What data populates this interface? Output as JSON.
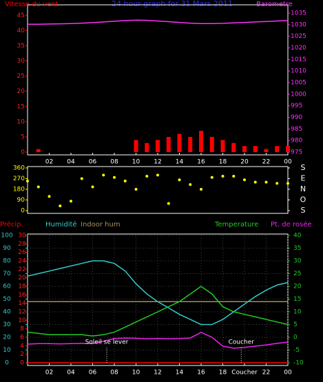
{
  "chart_data": [
    {
      "type": "combo",
      "title": "24 hour graph for 31 Mars 2011",
      "title_color": "#2a2aff",
      "x": [
        0,
        1,
        2,
        3,
        4,
        5,
        6,
        7,
        8,
        9,
        10,
        11,
        12,
        13,
        14,
        15,
        16,
        17,
        18,
        19,
        20,
        21,
        22,
        23,
        24
      ],
      "xlim": [
        0,
        24
      ],
      "xticks": [
        {
          "value": 2,
          "label": "02"
        },
        {
          "value": 4,
          "label": "04"
        },
        {
          "value": 6,
          "label": "06"
        },
        {
          "value": 8,
          "label": "08"
        },
        10,
        12,
        14,
        16,
        18,
        20,
        22,
        {
          "value": 24,
          "label": "00"
        }
      ],
      "axes": [
        {
          "side": "left",
          "color": "#ff2020",
          "lim": [
            0,
            48
          ],
          "ticks": [
            0,
            5,
            10,
            15,
            20,
            25,
            30,
            35,
            40,
            45
          ]
        },
        {
          "side": "right",
          "color": "#ff30ff",
          "lim": [
            975,
            1038
          ],
          "ticks": [
            975,
            980,
            985,
            990,
            995,
            1000,
            1005,
            1010,
            1015,
            1020,
            1025,
            1030,
            1035
          ]
        }
      ],
      "series": [
        {
          "name": "Vitesse du vent",
          "kind": "bar",
          "axis": 0,
          "color": "#ff0000",
          "values": [
            0,
            1,
            0,
            0,
            0,
            0,
            0,
            0,
            0,
            0,
            4,
            3,
            4,
            5,
            6,
            5,
            7,
            5,
            4,
            3,
            2,
            2,
            1,
            2,
            2
          ]
        },
        {
          "name": "Barometre",
          "kind": "line",
          "axis": 1,
          "color": "#ff30ff",
          "values": [
            1030.2,
            1030.2,
            1030.3,
            1030.4,
            1030.5,
            1030.7,
            1030.9,
            1031.2,
            1031.5,
            1031.8,
            1032,
            1031.9,
            1031.6,
            1031.3,
            1031,
            1030.7,
            1030.5,
            1030.5,
            1030.6,
            1030.8,
            1031,
            1031.2,
            1031.4,
            1031.6,
            1031.8
          ]
        }
      ],
      "grid": false
    },
    {
      "type": "scatter",
      "x": [
        0,
        1,
        2,
        3,
        4,
        5,
        6,
        7,
        8,
        9,
        10,
        11,
        12,
        13,
        14,
        15,
        16,
        17,
        18,
        19,
        20,
        21,
        22,
        23,
        24
      ],
      "xlim": [
        0,
        24
      ],
      "xticks": [],
      "axes": [
        {
          "side": "left",
          "color": "#ffff00",
          "lim": [
            0,
            360
          ],
          "ticks": [
            0,
            90,
            180,
            270,
            360
          ]
        },
        {
          "side": "right",
          "color": "#ffffff",
          "lim": [
            0,
            360
          ],
          "ticks": [
            {
              "value": 0,
              "label": "S"
            },
            {
              "value": 90,
              "label": "O"
            },
            {
              "value": 180,
              "label": "N"
            },
            {
              "value": 270,
              "label": "E"
            },
            {
              "value": 360,
              "label": "S"
            }
          ]
        }
      ],
      "series": [
        {
          "kind": "scatter",
          "axis": 0,
          "color": "#ffff00",
          "values": [
            250,
            200,
            120,
            40,
            80,
            270,
            200,
            300,
            280,
            250,
            180,
            290,
            300,
            60,
            260,
            220,
            180,
            280,
            290,
            290,
            260,
            240,
            240,
            230,
            230
          ]
        }
      ],
      "grid": false
    },
    {
      "type": "combo",
      "x": [
        0,
        1,
        2,
        3,
        4,
        5,
        6,
        7,
        8,
        9,
        10,
        11,
        12,
        13,
        14,
        15,
        16,
        17,
        18,
        19,
        20,
        21,
        22,
        23,
        24
      ],
      "xlim": [
        0,
        24
      ],
      "xticks": [
        {
          "value": 2,
          "label": "02"
        },
        {
          "value": 4,
          "label": "04"
        },
        {
          "value": 6,
          "label": "06"
        },
        {
          "value": 8,
          "label": "08"
        },
        10,
        12,
        14,
        16,
        18,
        {
          "value": 20,
          "label": "Coucher"
        },
        22,
        {
          "value": 24,
          "label": "00"
        }
      ],
      "axes": [
        {
          "side": "left",
          "color": "#33cccc",
          "lim": [
            0,
            100
          ],
          "ticks": [
            0,
            10,
            20,
            30,
            40,
            50,
            60,
            70,
            80,
            90,
            100
          ]
        },
        {
          "side": "left",
          "color": "#ff2020",
          "lim": [
            0,
            30
          ],
          "ticks": [
            0,
            2,
            4,
            6,
            8,
            10,
            12,
            14,
            16,
            18,
            20,
            22,
            24,
            26,
            28,
            30
          ]
        },
        {
          "side": "right",
          "color": "#22cc22",
          "lim": [
            -10,
            40
          ],
          "ticks": [
            -10,
            -5,
            0,
            5,
            10,
            15,
            20,
            25,
            30,
            35,
            40
          ]
        }
      ],
      "series": [
        {
          "name": "Précip.",
          "kind": "line",
          "axis": 1,
          "color": "#ff0000",
          "values": [
            0,
            0,
            0,
            0,
            0,
            0,
            0,
            0,
            0,
            0,
            0,
            0,
            0,
            0,
            0,
            0,
            0,
            0,
            0,
            0,
            0,
            0,
            0,
            0,
            0
          ]
        },
        {
          "name": "Humidité",
          "kind": "line",
          "axis": 0,
          "color": "#33cccc",
          "values": [
            68,
            70,
            72,
            74,
            76,
            78,
            80,
            80,
            78,
            72,
            62,
            54,
            48,
            43,
            38,
            34,
            30,
            30,
            34,
            40,
            46,
            52,
            57,
            61,
            63
          ]
        },
        {
          "name": "Indoor hum",
          "kind": "line",
          "axis": 0,
          "color": "#a8905a",
          "values": [
            48,
            48,
            48,
            48,
            48,
            48,
            48,
            48,
            48,
            48,
            48,
            48,
            48,
            48,
            48,
            48,
            48,
            48,
            48,
            48,
            48,
            48,
            48,
            48,
            48
          ]
        },
        {
          "name": "Temperature",
          "kind": "line",
          "axis": 2,
          "color": "#22cc22",
          "values": [
            2,
            1.5,
            1,
            1,
            1,
            1,
            0.5,
            1,
            2,
            4,
            6,
            8,
            10,
            12,
            14,
            17,
            20,
            17,
            12,
            10,
            9,
            8,
            7,
            6,
            5
          ]
        },
        {
          "name": "Pt. de rosée",
          "kind": "line",
          "axis": 2,
          "color": "#ee22ee",
          "values": [
            -2.7,
            -2.5,
            -2.5,
            -2.6,
            -2.5,
            -2.4,
            -2.5,
            -1.5,
            -0.5,
            -0.3,
            -0.4,
            -0.6,
            -0.5,
            -0.6,
            -0.5,
            -0.3,
            1.9,
            0,
            -3.5,
            -4.3,
            -4,
            -3.5,
            -3,
            -2.4,
            -1.9
          ]
        }
      ],
      "annotations": [
        {
          "text": "Soleil se lever",
          "x": 7.3
        },
        {
          "text": "Coucher",
          "x": 19.7
        }
      ],
      "grid": true
    }
  ]
}
